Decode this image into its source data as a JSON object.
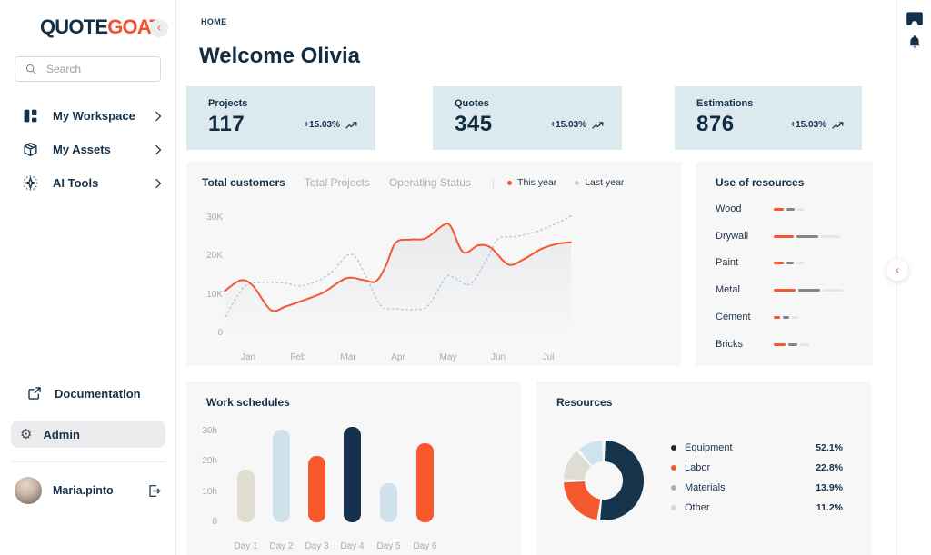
{
  "brand": {
    "quote": "QUOTE",
    "goat": "GOAT",
    "collapse_glyph": "‹"
  },
  "colors": {
    "accent_orange": "#f4512b",
    "navy": "#16324a",
    "card_bg": "#dce9ef",
    "panel_bg": "#f7f7f8",
    "muted_text": "#a7adb4"
  },
  "sidebar": {
    "search": {
      "placeholder": "Search"
    },
    "menu": [
      {
        "icon": "workspace-icon",
        "label": "My Workspace"
      },
      {
        "icon": "box-icon",
        "label": "My Assets"
      },
      {
        "icon": "sparkle-icon",
        "label": "AI Tools"
      }
    ],
    "secondary": [
      {
        "icon": "external-link-icon",
        "label": "Documentation",
        "active": false
      },
      {
        "icon": "gear-icon",
        "label": "Admin",
        "active": true
      }
    ],
    "user": {
      "name": "Maria.pinto"
    }
  },
  "rail": {
    "icons": [
      "display-icon",
      "bell-icon"
    ],
    "collapse_glyph": "‹"
  },
  "header": {
    "breadcrumb": "HOME",
    "title": "Welcome Olivia"
  },
  "stats": [
    {
      "label": "Projects",
      "value": "117",
      "delta": "+15.03%"
    },
    {
      "label": "Quotes",
      "value": "345",
      "delta": "+15.03%"
    },
    {
      "label": "Estimations",
      "value": "876",
      "delta": "+15.03%"
    }
  ],
  "chart_data": [
    {
      "id": "total-customers",
      "type": "line",
      "tabs": [
        "Total customers",
        "Total Projects",
        "Operating Status"
      ],
      "active_tab": "Total customers",
      "legend": [
        {
          "name": "This year",
          "color": "#f4512b"
        },
        {
          "name": "Last year",
          "color": "#b9d3e2"
        }
      ],
      "x_ticks": [
        "Jan",
        "Feb",
        "Mar",
        "Apr",
        "May",
        "Jun",
        "Jul"
      ],
      "y_tick_values": [
        30,
        20,
        10,
        0
      ],
      "y_tick_labels": [
        "30K",
        "20K",
        "10K",
        "0"
      ],
      "ylim": [
        0,
        32
      ],
      "unit": "K customers",
      "grid": false,
      "legend_position": "top",
      "series": [
        {
          "name": "This year",
          "style": "solid",
          "color": "#f4582f",
          "points": [
            [
              0.53,
              11
            ],
            [
              0.85,
              13.8
            ],
            [
              1.1,
              12.3
            ],
            [
              1.45,
              6.1
            ],
            [
              1.75,
              7.0
            ],
            [
              2.0,
              8.1
            ],
            [
              2.5,
              10.6
            ],
            [
              2.95,
              14.3
            ],
            [
              3.3,
              13.9
            ],
            [
              3.55,
              13.5
            ],
            [
              3.75,
              17.5
            ],
            [
              3.95,
              23.6
            ],
            [
              4.25,
              24.4
            ],
            [
              4.55,
              24.7
            ],
            [
              4.9,
              28.1
            ],
            [
              5.05,
              27.8
            ],
            [
              5.3,
              21.1
            ],
            [
              5.6,
              22.9
            ],
            [
              5.85,
              22.3
            ],
            [
              6.2,
              17.9
            ],
            [
              6.5,
              19.2
            ],
            [
              6.85,
              21.9
            ],
            [
              7.15,
              23.2
            ],
            [
              7.45,
              23.7
            ]
          ]
        },
        {
          "name": "Last year",
          "style": "dotted",
          "color": "#abccdf",
          "points": [
            [
              0.55,
              4.4
            ],
            [
              0.9,
              11.8
            ],
            [
              1.2,
              13.2
            ],
            [
              1.7,
              13.1
            ],
            [
              2.1,
              12.4
            ],
            [
              2.6,
              15.2
            ],
            [
              3.05,
              20.6
            ],
            [
              3.35,
              15.0
            ],
            [
              3.65,
              7.2
            ],
            [
              3.95,
              6.4
            ],
            [
              4.3,
              6.2
            ],
            [
              4.6,
              7.2
            ],
            [
              4.95,
              14.6
            ],
            [
              5.15,
              14.2
            ],
            [
              5.45,
              12.9
            ],
            [
              5.8,
              20.0
            ],
            [
              6.0,
              24.6
            ],
            [
              6.35,
              25.2
            ],
            [
              6.7,
              26.2
            ],
            [
              7.1,
              28.2
            ],
            [
              7.5,
              30.8
            ]
          ]
        }
      ]
    },
    {
      "id": "use-of-resources",
      "type": "bar",
      "orientation": "horizontal",
      "title": "Use of resources",
      "segment_colors": [
        "#f2572e",
        "#7e878f",
        "#e7e6e0"
      ],
      "rows": [
        {
          "label": "Wood",
          "segments": [
            11,
            9,
            8
          ]
        },
        {
          "label": "Drywall",
          "segments": [
            22,
            24,
            21
          ]
        },
        {
          "label": "Paint",
          "segments": [
            11,
            8,
            8
          ]
        },
        {
          "label": "Metal",
          "segments": [
            24,
            24,
            22
          ]
        },
        {
          "label": "Cement",
          "segments": [
            7,
            7,
            7
          ]
        },
        {
          "label": "Bricks",
          "segments": [
            13,
            10,
            10
          ]
        }
      ]
    },
    {
      "id": "work-schedules",
      "type": "bar",
      "title": "Work schedules",
      "categories": [
        "Day 1",
        "Day 2",
        "Day 3",
        "Day 4",
        "Day 5",
        "Day 6"
      ],
      "values": [
        17.5,
        30.5,
        22,
        31.5,
        13,
        26
      ],
      "unit": "h",
      "colors": [
        "#e0ddd0",
        "#cfe2ec",
        "#f9572c",
        "#14324b",
        "#cfe2ec",
        "#f9572c"
      ],
      "y_tick_values": [
        30,
        20,
        10,
        0
      ],
      "y_tick_labels": [
        "30h",
        "20h",
        "10h",
        "0"
      ],
      "ylim": [
        0,
        33
      ],
      "grid": false
    },
    {
      "id": "resources",
      "type": "pie",
      "title": "Resources",
      "legend_position": "right",
      "slices": [
        {
          "label": "Equipment",
          "value": 52.1,
          "display": "52.1%",
          "color": "#17344d",
          "dot": "#1d2c3c"
        },
        {
          "label": "Labor",
          "value": 22.8,
          "display": "22.8%",
          "color": "#f4582f",
          "dot": "#f4582f"
        },
        {
          "label": "Materials",
          "value": 13.9,
          "display": "13.9%",
          "color": "#dedcd4",
          "dot": "#a9aeb0"
        },
        {
          "label": "Other",
          "value": 11.2,
          "display": "11.2%",
          "color": "#cfe3ee",
          "dot": "#c3dcea"
        }
      ]
    }
  ]
}
